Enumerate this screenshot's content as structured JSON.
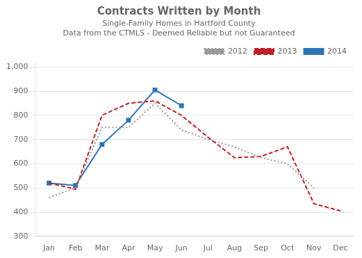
{
  "chart_data": {
    "type": "line",
    "title": "Contracts Written by Month",
    "subtitle": [
      "Single-Family Homes in Hartford County",
      "Data from the CTMLS - Deemed Reliable but not Guaranteed"
    ],
    "categories": [
      "Jan",
      "Feb",
      "Mar",
      "Apr",
      "May",
      "Jun",
      "Jul",
      "Aug",
      "Sep",
      "Oct",
      "Nov",
      "Dec"
    ],
    "series": [
      {
        "name": "2012",
        "color": "#999999",
        "line_style": "dotted",
        "marker": "none",
        "values": [
          460,
          500,
          750,
          750,
          850,
          740,
          700,
          670,
          625,
          600,
          500,
          null
        ]
      },
      {
        "name": "2013",
        "color": "#bf2026",
        "line_style": "dashed",
        "marker": "none",
        "values": [
          520,
          495,
          800,
          850,
          860,
          800,
          710,
          625,
          630,
          670,
          435,
          405
        ]
      },
      {
        "name": "2014",
        "color": "#2e75b6",
        "line_style": "solid",
        "marker": "square",
        "values": [
          520,
          510,
          680,
          780,
          905,
          840,
          null,
          null,
          null,
          null,
          null,
          null
        ]
      }
    ],
    "ylim": [
      300,
      1020
    ],
    "yticks": [
      300,
      400,
      500,
      600,
      700,
      800,
      900,
      {
        "value": 1000,
        "label": "1,000"
      }
    ],
    "grid": "y",
    "legend": "upper right"
  }
}
